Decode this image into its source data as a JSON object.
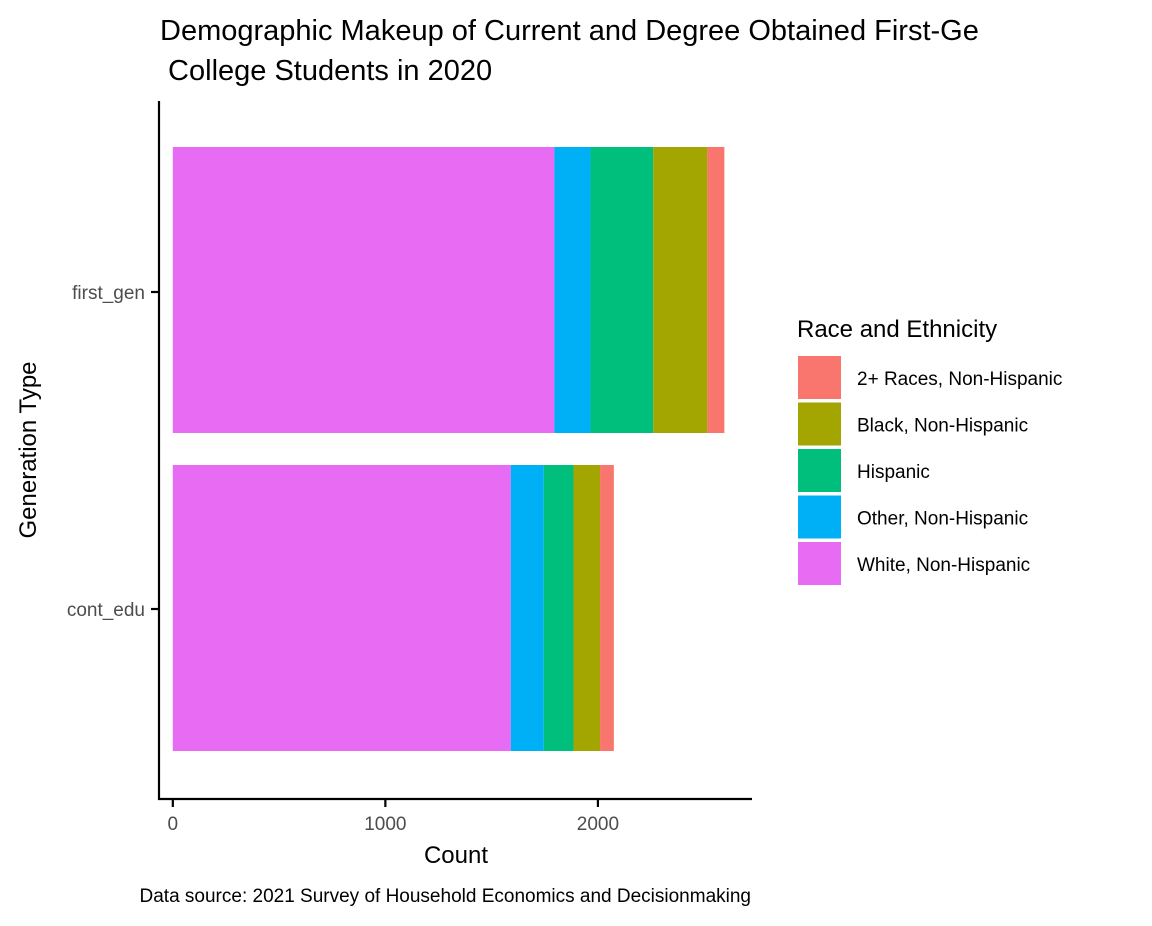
{
  "chart_data": {
    "type": "bar",
    "orientation": "horizontal",
    "stacked": true,
    "title_lines": [
      "Demographic Makeup of Current and Degree Obtained First-Ge",
      " College Students in 2020"
    ],
    "xlabel": "Count",
    "ylabel": "Generation Type",
    "caption": "Data source: 2021 Survey of Household Economics and Decisionmaking",
    "categories": [
      "first_gen",
      "cont_edu"
    ],
    "xlim": [
      -65,
      2725
    ],
    "xticks": [
      0,
      1000,
      2000
    ],
    "xtick_labels": [
      "0",
      "1000",
      "2000"
    ],
    "grid": false,
    "legend": {
      "title": "Race and Ethnicity",
      "position": "right"
    },
    "stack_order": [
      "White, Non-Hispanic",
      "Other, Non-Hispanic",
      "Hispanic",
      "Black, Non-Hispanic",
      "2+ Races, Non-Hispanic"
    ],
    "series": [
      {
        "name": "2+ Races, Non-Hispanic",
        "color": "#F8766D",
        "values": [
          80,
          65
        ]
      },
      {
        "name": "Black, Non-Hispanic",
        "color": "#A3A500",
        "values": [
          255,
          125
        ]
      },
      {
        "name": "Hispanic",
        "color": "#00BF7D",
        "values": [
          295,
          140
        ]
      },
      {
        "name": "Other, Non-Hispanic",
        "color": "#00B0F6",
        "values": [
          170,
          155
        ]
      },
      {
        "name": "White, Non-Hispanic",
        "color": "#E76BF3",
        "values": [
          1795,
          1590
        ]
      }
    ]
  }
}
